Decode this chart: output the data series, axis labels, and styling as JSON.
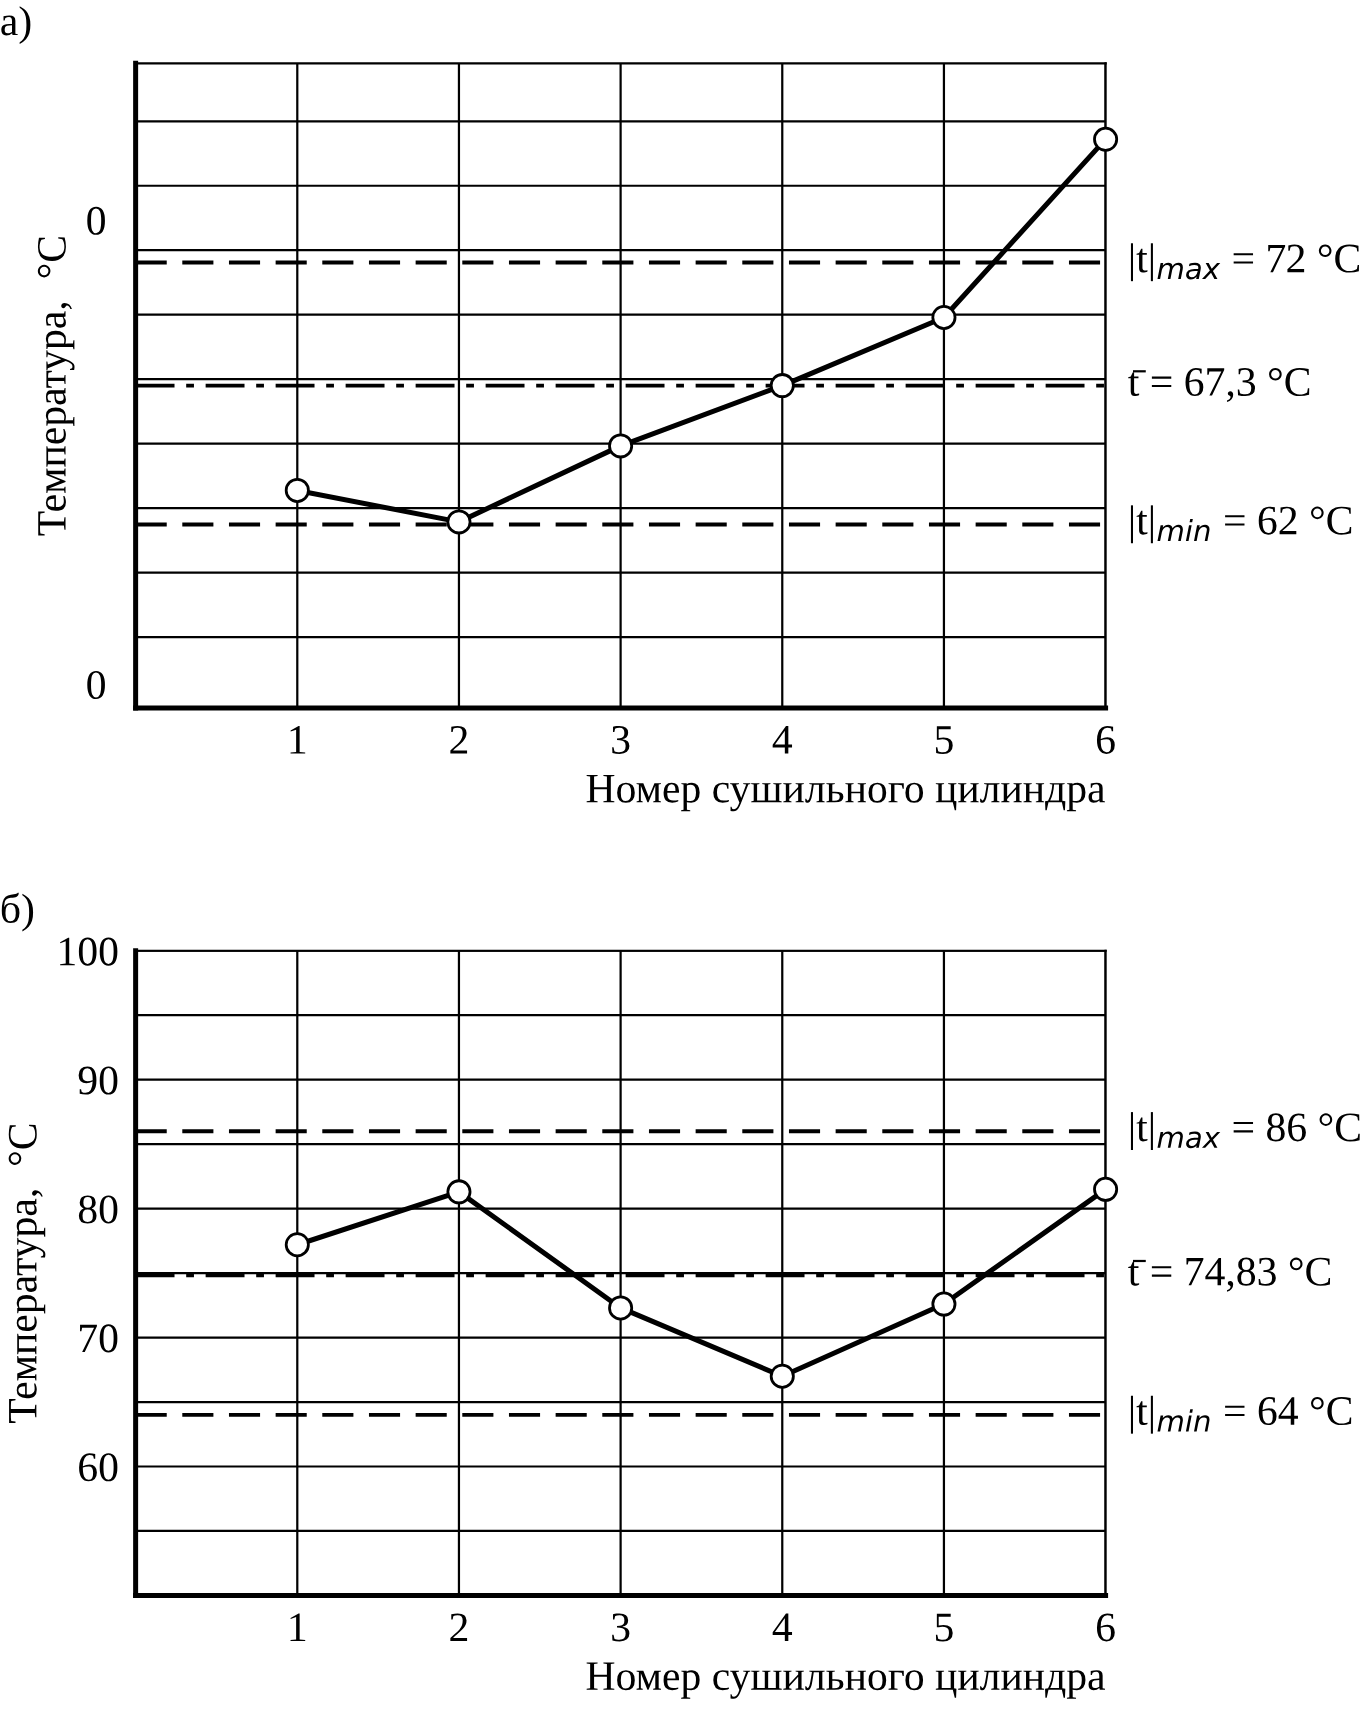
{
  "chart_data": [
    {
      "type": "line",
      "title": "а)",
      "xlabel": "Номер сушильного цилиндра",
      "ylabel": "Температура,  °C",
      "x": [
        1,
        2,
        3,
        4,
        5,
        6
      ],
      "xlim": [
        0,
        6
      ],
      "xticks": [
        1,
        2,
        3,
        4,
        5,
        6
      ],
      "ylim": [
        55,
        79.6
      ],
      "annotations": [
        "0",
        "0"
      ],
      "series": [
        {
          "color": "#000000",
          "values": [
            63.3,
            62.1,
            65.0,
            67.3,
            69.9,
            76.7
          ]
        }
      ],
      "ref_lines": [
        {
          "axis": "y",
          "value": 72,
          "label": "|t|$_{max}$ = 72 °C",
          "line_style": "dashed",
          "color": "#000000"
        },
        {
          "axis": "y",
          "value": 67.3,
          "label": "t̄ = 67,3 °C",
          "line_style": "dashdot",
          "color": "#000000"
        },
        {
          "axis": "y",
          "value": 62,
          "label": "|t|$_{min}$ = 62 °C",
          "line_style": "dashed",
          "color": "#000000"
        }
      ],
      "grid": true,
      "marker": "circle",
      "line_style": "solid",
      "legend": false
    },
    {
      "type": "line",
      "title": "б)",
      "xlabel": "Номер сушильного цилиндра",
      "ylabel": "Температура,  °C",
      "x": [
        1,
        2,
        3,
        4,
        5,
        6
      ],
      "xlim": [
        0,
        6
      ],
      "xticks": [
        1,
        2,
        3,
        4,
        5,
        6
      ],
      "ylim": [
        50,
        100
      ],
      "yticks": [
        {
          "value": 55,
          "label": null
        },
        60,
        {
          "value": 65,
          "label": null
        },
        70,
        {
          "value": 75,
          "label": null
        },
        80,
        {
          "value": 85,
          "label": null
        },
        90,
        {
          "value": 95,
          "label": null
        },
        100
      ],
      "series": [
        {
          "color": "#000000",
          "values": [
            77.2,
            81.3,
            72.3,
            67.0,
            72.6,
            81.5
          ]
        }
      ],
      "ref_lines": [
        {
          "axis": "y",
          "value": 86,
          "label": "|t|$_{max}$ = 86 °C",
          "line_style": "dashed",
          "color": "#000000"
        },
        {
          "axis": "y",
          "value": 74.83,
          "label": "t̄ = 74,83 °C",
          "line_style": "dashdot",
          "color": "#000000"
        },
        {
          "axis": "y",
          "value": 64,
          "label": "|t|$_{min}$ = 64 °C",
          "line_style": "dashed",
          "color": "#000000"
        }
      ],
      "grid": true,
      "marker": "circle",
      "line_style": "solid",
      "legend": false
    }
  ]
}
